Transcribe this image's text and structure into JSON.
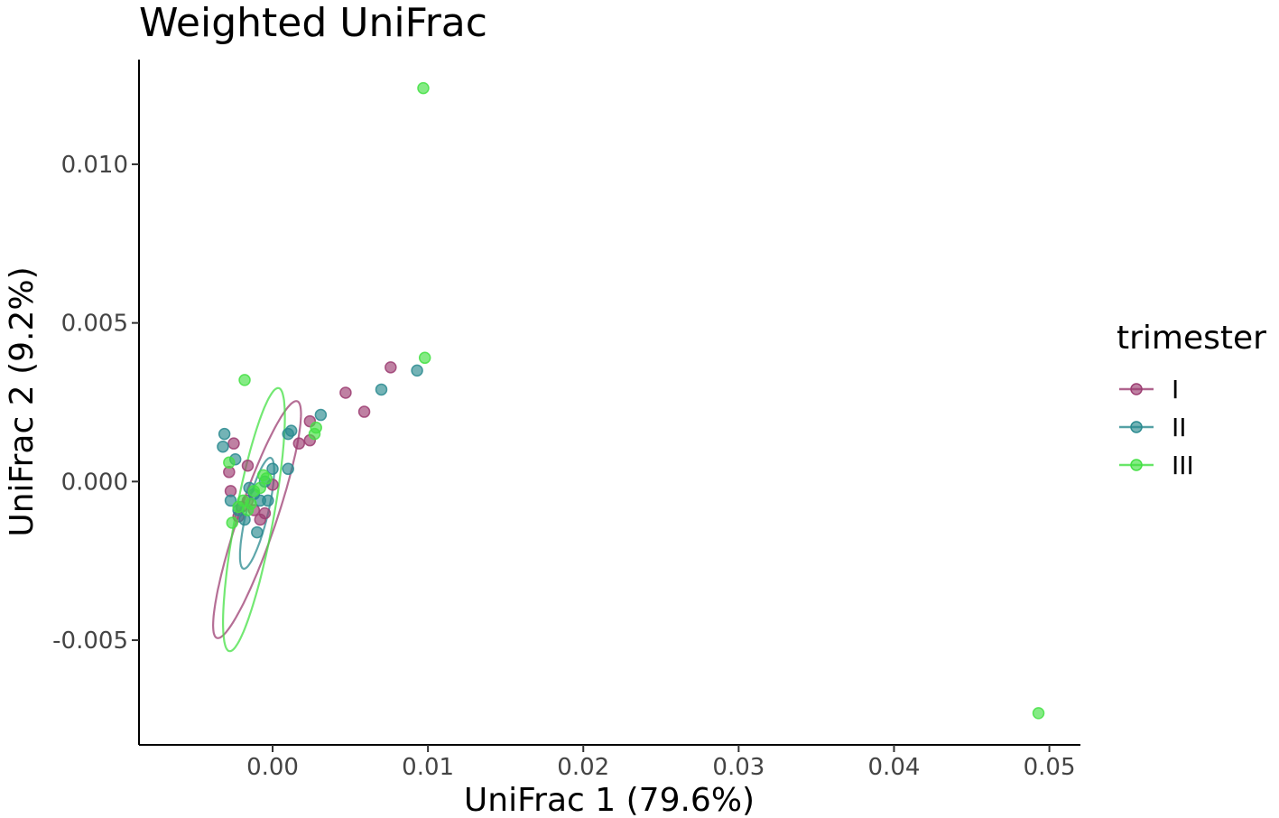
{
  "chart_data": {
    "type": "scatter",
    "title": "Weighted UniFrac",
    "xlabel": "UniFrac 1 (79.6%)",
    "ylabel": "UniFrac 2 (9.2%)",
    "xlim": [
      -0.0086,
      0.052
    ],
    "ylim": [
      -0.0083,
      0.0133
    ],
    "x_ticks": [
      0.0,
      0.01,
      0.02,
      0.03,
      0.04,
      0.05
    ],
    "x_tick_labels": [
      "0.00",
      "0.01",
      "0.02",
      "0.03",
      "0.04",
      "0.05"
    ],
    "y_ticks": [
      -0.005,
      0.0,
      0.005,
      0.01
    ],
    "y_tick_labels": [
      "-0.005",
      "0.000",
      "0.005",
      "0.010"
    ],
    "grid": false,
    "legend": {
      "title": "trimester",
      "position": "right",
      "entries": [
        "I",
        "II",
        "III"
      ]
    },
    "series": [
      {
        "name": "I",
        "color": "#9c3d72",
        "points": [
          [
            0.0047,
            0.0028
          ],
          [
            0.0076,
            0.0036
          ],
          [
            0.0059,
            0.0022
          ],
          [
            0.0024,
            0.0019
          ],
          [
            0.0024,
            0.0013
          ],
          [
            0.0017,
            0.0012
          ],
          [
            -0.0016,
            0.0005
          ],
          [
            -0.0028,
            0.0003
          ],
          [
            -0.0025,
            0.0012
          ],
          [
            -0.0027,
            -0.0003
          ],
          [
            -0.002,
            -0.0008
          ],
          [
            -0.0012,
            -0.0009
          ],
          [
            -0.0008,
            -0.0012
          ],
          [
            -0.0005,
            -0.001
          ],
          [
            0.0,
            -0.0001
          ],
          [
            -0.0016,
            -0.0006
          ],
          [
            -0.0022,
            -0.0011
          ]
        ],
        "ellipse": {
          "center": [
            -0.001,
            -0.0012
          ],
          "semi_major": 0.0062,
          "semi_minor": 0.0014,
          "angle_deg": 35
        }
      },
      {
        "name": "II",
        "color": "#2a8a8f",
        "points": [
          [
            0.0093,
            0.0035
          ],
          [
            0.007,
            0.0029
          ],
          [
            0.0031,
            0.0021
          ],
          [
            0.0012,
            0.0016
          ],
          [
            0.001,
            0.0015
          ],
          [
            0.001,
            0.0004
          ],
          [
            0.0,
            0.0004
          ],
          [
            -0.0031,
            0.0015
          ],
          [
            -0.0032,
            0.0011
          ],
          [
            -0.0024,
            0.0007
          ],
          [
            -0.0027,
            -0.0006
          ],
          [
            -0.0022,
            -0.0009
          ],
          [
            -0.0012,
            -0.0004
          ],
          [
            -0.0008,
            -0.0006
          ],
          [
            -0.0003,
            -0.0006
          ],
          [
            -0.0018,
            -0.0012
          ],
          [
            -0.001,
            -0.0016
          ],
          [
            -0.0015,
            -0.0002
          ],
          [
            -0.0005,
            0.0
          ]
        ],
        "ellipse": {
          "center": [
            -0.001,
            -0.001
          ],
          "semi_major": 0.0025,
          "semi_minor": 0.0009,
          "angle_deg": 40
        }
      },
      {
        "name": "III",
        "color": "#44e044",
        "points": [
          [
            0.0097,
            0.0124
          ],
          [
            0.0098,
            0.0039
          ],
          [
            0.0493,
            -0.0073
          ],
          [
            -0.0018,
            0.0032
          ],
          [
            0.0028,
            0.0017
          ],
          [
            0.0027,
            0.0015
          ],
          [
            -0.0004,
            0.0001
          ],
          [
            -0.0006,
            0.0002
          ],
          [
            -0.0028,
            0.0006
          ],
          [
            -0.0019,
            -0.0006
          ],
          [
            -0.0014,
            -0.0007
          ],
          [
            -0.0026,
            -0.0013
          ],
          [
            -0.0012,
            -0.0003
          ],
          [
            -0.0016,
            -0.0009
          ],
          [
            -0.0008,
            -0.0002
          ],
          [
            -0.0022,
            -0.0008
          ]
        ],
        "ellipse": {
          "center": [
            -0.0012,
            -0.0012
          ],
          "semi_major": 0.0052,
          "semi_minor": 0.0018,
          "angle_deg": 50
        }
      }
    ]
  }
}
